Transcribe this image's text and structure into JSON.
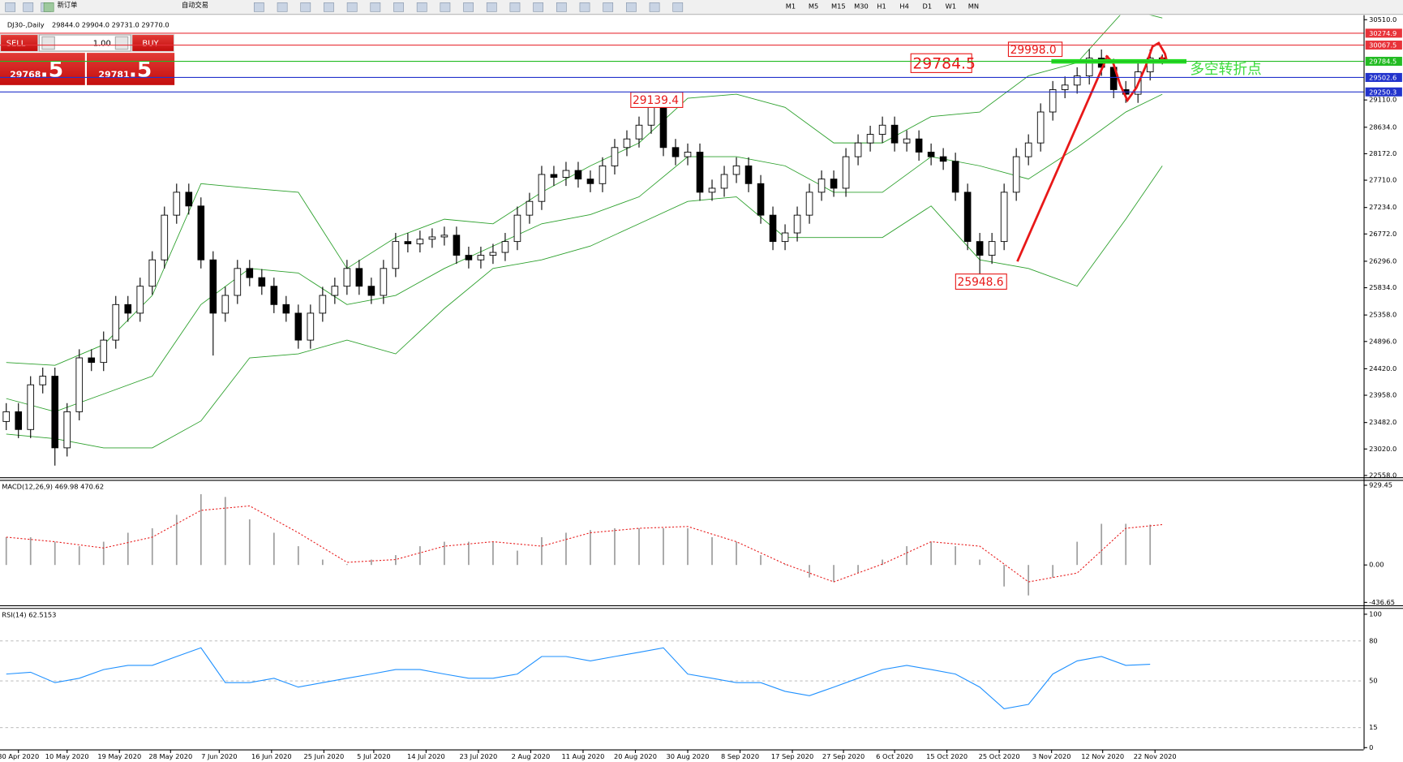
{
  "ui": {
    "toolbar": [
      "新订单",
      "自动交易"
    ],
    "timeframes": [
      "M1",
      "M5",
      "M15",
      "M30",
      "H1",
      "H4",
      "D1",
      "W1",
      "MN"
    ],
    "trade": {
      "sell": "SELL",
      "lots": "1.00",
      "buy": "BUY",
      "bid_main": "29768",
      "bid_frac": ".5",
      "ask_main": "29781",
      "ask_frac": ".5"
    }
  },
  "chart_data": [
    {
      "type": "candlestick",
      "title": "DJ30-,Daily",
      "subtitle": "29844.0 29904.0 29731.0 29770.0",
      "open": [
        23500,
        23670,
        23360,
        24140,
        24290,
        23040,
        23670,
        24610,
        24530,
        24920,
        25540,
        25390,
        25860,
        26320,
        27100,
        27500,
        27260,
        26320,
        25390,
        25700,
        26170,
        26010,
        25860,
        25540,
        25390,
        24920,
        25390,
        25700,
        25860,
        26170,
        25860,
        25700,
        26170,
        26640,
        26600,
        26680,
        26720,
        26750,
        26400,
        26320,
        26400,
        26450,
        26640,
        27100,
        27340,
        27810,
        27760,
        27880,
        27730,
        27650,
        27960,
        28280,
        28430,
        28670,
        28980,
        28280,
        28120,
        28200,
        27500,
        27570,
        27810,
        27960,
        27650,
        27100,
        26640,
        26790,
        27100,
        27500,
        27730,
        27570,
        28120,
        28360,
        28510,
        28670,
        28360,
        28430,
        28200,
        28120,
        28040,
        27500,
        26640,
        26400,
        26640,
        27500,
        28120,
        28360,
        28900,
        29290,
        29370,
        29530,
        29840,
        29680,
        29290,
        29210,
        29600,
        29844
      ],
      "high": [
        23820,
        23820,
        24290,
        24440,
        24440,
        23820,
        24760,
        24760,
        25070,
        25690,
        25690,
        26010,
        26470,
        27250,
        27650,
        27650,
        27410,
        26470,
        25850,
        26320,
        26320,
        26160,
        26010,
        25690,
        25540,
        25540,
        25850,
        26010,
        26320,
        26320,
        26010,
        26320,
        26790,
        26790,
        26830,
        26870,
        26900,
        26900,
        26550,
        26550,
        26600,
        26790,
        27250,
        27490,
        27960,
        27960,
        28030,
        28030,
        27880,
        28110,
        28430,
        28580,
        28820,
        29139.4,
        29130,
        28430,
        28350,
        28350,
        27720,
        27960,
        28110,
        28110,
        27800,
        27250,
        26940,
        27250,
        27650,
        27880,
        27880,
        28270,
        28510,
        28660,
        28820,
        28820,
        28580,
        28580,
        28350,
        28270,
        28190,
        27650,
        26790,
        26790,
        27650,
        28270,
        28510,
        29050,
        29440,
        29520,
        29680,
        29998,
        29990,
        29830,
        29440,
        29750,
        29990,
        29904
      ],
      "low": [
        23350,
        23210,
        23210,
        23990,
        22730,
        22890,
        23520,
        24380,
        24380,
        24770,
        25240,
        25240,
        25710,
        26170,
        26950,
        27110,
        26170,
        24650,
        25240,
        25550,
        25860,
        25710,
        25390,
        25240,
        24770,
        24770,
        25240,
        25550,
        25710,
        25710,
        25550,
        25550,
        26020,
        26450,
        26450,
        26530,
        26570,
        26250,
        26170,
        26170,
        26250,
        26300,
        26490,
        26950,
        27190,
        27610,
        27610,
        27580,
        27500,
        27500,
        27810,
        28130,
        28280,
        28520,
        28130,
        27970,
        27970,
        27350,
        27350,
        27420,
        27660,
        27500,
        26950,
        26490,
        26490,
        26640,
        26950,
        27350,
        27420,
        27420,
        27970,
        28210,
        28360,
        28210,
        28210,
        28050,
        27970,
        27890,
        27350,
        26490,
        25948.6,
        26250,
        26490,
        27350,
        27970,
        28210,
        28750,
        29140,
        29220,
        29380,
        29530,
        29140,
        29060,
        29060,
        29450,
        29731
      ],
      "close": [
        23670,
        23360,
        24140,
        24290,
        23040,
        23670,
        24610,
        24530,
        24920,
        25540,
        25390,
        25860,
        26320,
        27100,
        27500,
        27260,
        26320,
        25390,
        25700,
        26170,
        26010,
        25860,
        25540,
        25390,
        24920,
        25390,
        25700,
        25860,
        26170,
        25860,
        25700,
        26170,
        26640,
        26600,
        26680,
        26720,
        26750,
        26400,
        26320,
        26400,
        26450,
        26640,
        27100,
        27340,
        27810,
        27760,
        27880,
        27730,
        27650,
        27960,
        28280,
        28430,
        28670,
        28980,
        28280,
        28120,
        28200,
        27500,
        27570,
        27810,
        27960,
        27650,
        27100,
        26640,
        26790,
        27100,
        27500,
        27730,
        27570,
        28120,
        28360,
        28510,
        28670,
        28360,
        28430,
        28200,
        28120,
        28040,
        27500,
        26640,
        26400,
        26640,
        27500,
        28120,
        28360,
        28900,
        29290,
        29370,
        29530,
        29840,
        29680,
        29290,
        29210,
        29600,
        29840,
        29770
      ],
      "bands": {
        "color": "#2ca02c",
        "x": [
          0,
          4,
          8,
          12,
          16,
          20,
          24,
          28,
          32,
          36,
          40,
          44,
          48,
          52,
          56,
          60,
          64,
          68,
          72,
          76,
          80,
          84,
          88,
          92,
          95
        ],
        "upper": [
          24530,
          24480,
          24840,
          25700,
          27650,
          27570,
          27500,
          26170,
          26710,
          27030,
          26950,
          27500,
          27960,
          28360,
          29140,
          29210,
          28980,
          28360,
          28360,
          28820,
          28900,
          29530,
          29760,
          30700,
          30540
        ],
        "middle": [
          23900,
          23670,
          23980,
          24290,
          25540,
          26170,
          26090,
          25540,
          25700,
          26170,
          26560,
          26950,
          27110,
          27420,
          28120,
          28120,
          27960,
          27500,
          27500,
          28120,
          27960,
          27730,
          28280,
          28900,
          29210
        ],
        "lower": [
          23280,
          23200,
          23040,
          23040,
          23510,
          24610,
          24680,
          24920,
          24680,
          25470,
          26170,
          26320,
          26560,
          26950,
          27340,
          27420,
          26710,
          26710,
          26710,
          27260,
          26320,
          26170,
          25860,
          27030,
          27960
        ]
      },
      "hlines": [
        {
          "value": 30274.9,
          "color": "#e8333a"
        },
        {
          "value": 30067.5,
          "color": "#e8333a"
        },
        {
          "value": 29784.5,
          "color": "#22bb22"
        },
        {
          "value": 29502.6,
          "color": "#2233cc"
        },
        {
          "value": 29250.3,
          "color": "#2233cc"
        }
      ],
      "annotations": [
        "29998.0",
        "29784.5",
        "29139.4",
        "25948.6",
        "多空转折点"
      ],
      "ylim": [
        22527,
        30588
      ],
      "yticks": [
        {
          "value": 30510,
          "label": "30510.0"
        },
        {
          "value": 29110,
          "label": "29110.0"
        },
        {
          "value": 28634,
          "label": "28634.0"
        },
        {
          "value": 28172,
          "label": "28172.0"
        },
        {
          "value": 27710,
          "label": "27710.0"
        },
        {
          "value": 27234,
          "label": "27234.0"
        },
        {
          "value": 26772,
          "label": "26772.0"
        },
        {
          "value": 26296,
          "label": "26296.0"
        },
        {
          "value": 25834,
          "label": "25834.0"
        },
        {
          "value": 25358,
          "label": "25358.0"
        },
        {
          "value": 24896,
          "label": "24896.0"
        },
        {
          "value": 24420,
          "label": "24420.0"
        },
        {
          "value": 23958,
          "label": "23958.0"
        },
        {
          "value": 23482,
          "label": "23482.0"
        },
        {
          "value": 23020,
          "label": "23020.0"
        },
        {
          "value": 22558,
          "label": "22558.0"
        }
      ],
      "xticks": [
        {
          "value": 1,
          "label": "30 Apr 2020"
        },
        {
          "value": 5,
          "label": "10 May 2020"
        },
        {
          "value": 9.3,
          "label": "19 May 2020"
        },
        {
          "value": 13.5,
          "label": "28 May 2020"
        },
        {
          "value": 17.5,
          "label": "7 Jun 2020"
        },
        {
          "value": 21.8,
          "label": "16 Jun 2020"
        },
        {
          "value": 26.1,
          "label": "25 Jun 2020"
        },
        {
          "value": 30.2,
          "label": "5 Jul 2020"
        },
        {
          "value": 34.5,
          "label": "14 Jul 2020"
        },
        {
          "value": 38.8,
          "label": "23 Jul 2020"
        },
        {
          "value": 43.1,
          "label": "2 Aug 2020"
        },
        {
          "value": 47.4,
          "label": "11 Aug 2020"
        },
        {
          "value": 51.7,
          "label": "20 Aug 2020"
        },
        {
          "value": 56,
          "label": "30 Aug 2020"
        },
        {
          "value": 60.3,
          "label": "8 Sep 2020"
        },
        {
          "value": 64.6,
          "label": "17 Sep 2020"
        },
        {
          "value": 68.8,
          "label": "27 Sep 2020"
        },
        {
          "value": 73,
          "label": "6 Oct 2020"
        },
        {
          "value": 77.3,
          "label": "15 Oct 2020"
        },
        {
          "value": 81.6,
          "label": "25 Oct 2020"
        },
        {
          "value": 85.9,
          "label": "3 Nov 2020"
        },
        {
          "value": 90.1,
          "label": "12 Nov 2020"
        },
        {
          "value": 94.4,
          "label": "22 Nov 2020"
        }
      ]
    },
    {
      "type": "macd",
      "title": "MACD(12,26,9) 469.98 470.62",
      "color": "#a0a0a0",
      "x": [
        0,
        2,
        4,
        6,
        8,
        10,
        12,
        14,
        16,
        18,
        20,
        22,
        24,
        26,
        28,
        30,
        32,
        34,
        36,
        38,
        40,
        42,
        44,
        46,
        48,
        50,
        52,
        54,
        56,
        58,
        60,
        62,
        64,
        66,
        68,
        70,
        72,
        74,
        76,
        78,
        80,
        82,
        84,
        86,
        88,
        90,
        92,
        94
      ],
      "values": [
        324,
        324,
        271,
        219,
        271,
        376,
        428,
        585,
        825,
        793,
        532,
        376,
        219,
        63,
        10,
        63,
        115,
        219,
        271,
        271,
        271,
        167,
        324,
        376,
        407,
        428,
        428,
        428,
        428,
        324,
        271,
        115,
        10,
        -146,
        -198,
        -94,
        63,
        219,
        271,
        219,
        63,
        -251,
        -355,
        -146,
        271,
        480,
        480,
        469.98
      ],
      "signal": {
        "color": "#e82020",
        "x": [
          0,
          4,
          8,
          12,
          16,
          20,
          24,
          28,
          32,
          36,
          40,
          44,
          48,
          52,
          56,
          60,
          64,
          68,
          72,
          76,
          80,
          84,
          88,
          92,
          95
        ],
        "values": [
          324,
          271,
          198,
          324,
          637,
          689,
          376,
          31,
          63,
          219,
          271,
          219,
          376,
          428,
          449,
          271,
          10,
          -198,
          10,
          271,
          219,
          -198,
          -94,
          428,
          470.62
        ]
      },
      "ylim": [
        -470,
        981
      ],
      "yticks": [
        929.45,
        {
          "value": 0,
          "label": "0.00"
        },
        -436.65
      ]
    },
    {
      "type": "line",
      "title": "RSI(14) 62.5153",
      "color": "#1e90ff",
      "x": [
        0,
        2,
        4,
        6,
        8,
        10,
        12,
        14,
        16,
        18,
        20,
        22,
        24,
        26,
        28,
        30,
        32,
        34,
        36,
        38,
        40,
        42,
        44,
        46,
        48,
        50,
        52,
        54,
        56,
        58,
        60,
        62,
        64,
        66,
        68,
        70,
        72,
        74,
        76,
        78,
        80,
        82,
        84,
        86,
        88,
        90,
        92,
        94
      ],
      "values": [
        55.2,
        56.5,
        48.7,
        52,
        58.5,
        61.7,
        61.7,
        68.3,
        74.8,
        48.7,
        48.7,
        52,
        45.4,
        48.7,
        52,
        55.2,
        58.5,
        58.5,
        55.2,
        52,
        52,
        55.2,
        68.3,
        68.3,
        65,
        68.3,
        71.5,
        74.8,
        55.2,
        52,
        48.7,
        48.7,
        42.2,
        38.9,
        45.4,
        52,
        58.5,
        61.7,
        58.5,
        55.2,
        45.4,
        29.1,
        32.4,
        55.2,
        65,
        68.3,
        61.7,
        62.5153
      ],
      "ylim": [
        0,
        100
      ],
      "yticks": [
        100,
        80,
        50,
        15,
        0
      ],
      "grid": true
    }
  ]
}
